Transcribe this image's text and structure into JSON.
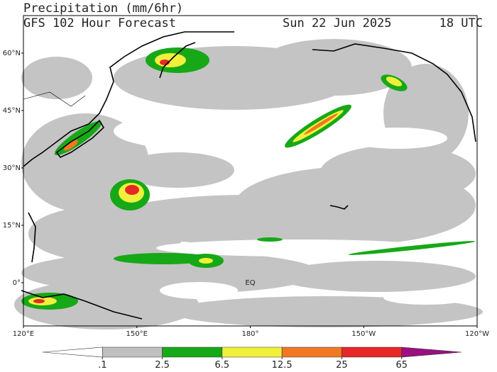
{
  "header": {
    "title": "Precipitation (mm/6hr)",
    "subtitle": "GFS 102 Hour Forecast",
    "date": "Sun 22 Jun 2025",
    "time": "18 UTC"
  },
  "map": {
    "lon_range": [
      120,
      240
    ],
    "lat_range": [
      -11.3,
      69.8
    ],
    "lat_ticks": [
      {
        "value": 60,
        "label": "60°N"
      },
      {
        "value": 45,
        "label": "45°N"
      },
      {
        "value": 30,
        "label": "30°N"
      },
      {
        "value": 15,
        "label": "15°N"
      },
      {
        "value": 0,
        "label": "0°"
      }
    ],
    "lon_ticks": [
      {
        "value": 120,
        "label": "120°E"
      },
      {
        "value": 150,
        "label": "150°E"
      },
      {
        "value": 180,
        "label": "180°"
      },
      {
        "value": 210,
        "label": "150°W"
      },
      {
        "value": 240,
        "label": "120°W"
      }
    ],
    "equator_label": "EQ"
  },
  "colorbar": {
    "colors": [
      "#ffffff",
      "#c0c0c0",
      "#17a817",
      "#f0f03c",
      "#f07820",
      "#e62828",
      "#9b0f80"
    ],
    "ticks": [
      {
        "value": 0.1,
        "label": ".1"
      },
      2.5,
      6.5,
      12.5,
      25,
      65
    ]
  }
}
